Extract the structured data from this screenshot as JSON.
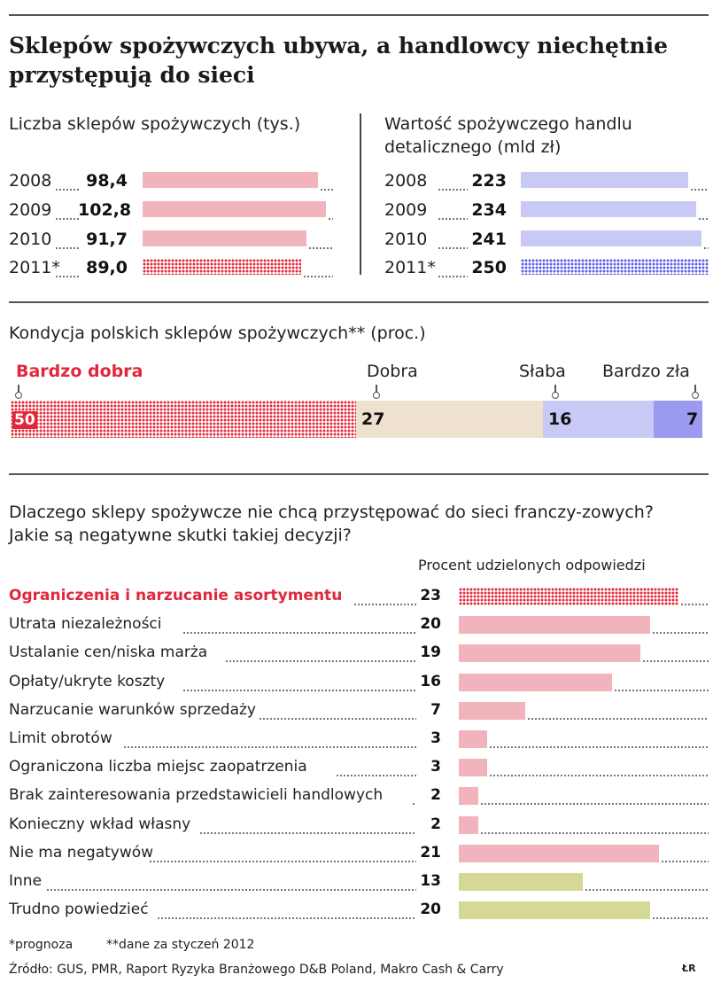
{
  "title": "Sklepów spożywczych ubywa, a handlowcy niechętnie przystępują do sieci",
  "colors": {
    "pink": "#f2b4bc",
    "red": "#e0283a",
    "blue_light": "#c9c9f6",
    "blue_dark": "#5c5ce8",
    "beige": "#eee1ce",
    "violet": "#9a9af0",
    "olive": "#d6d896"
  },
  "chart_data": [
    {
      "type": "bar",
      "title": "Liczba sklepów spożywczych (tys.)",
      "categories": [
        "2008",
        "2009",
        "2010",
        "2011*"
      ],
      "values": [
        98.4,
        102.8,
        91.7,
        89.0
      ],
      "labels": [
        "98,4",
        "102,8",
        "91,7",
        "89,0"
      ],
      "forecast_last": true
    },
    {
      "type": "bar",
      "title": "Wartość spożywczego handlu detalicznego (mld zł)",
      "categories": [
        "2008",
        "2009",
        "2010",
        "2011*"
      ],
      "values": [
        223,
        234,
        241,
        250
      ],
      "labels": [
        "223",
        "234",
        "241",
        "250"
      ],
      "forecast_last": true
    },
    {
      "type": "bar",
      "stacked": true,
      "title": "Kondycja polskich sklepów spożywczych** (proc.)",
      "categories": [
        "Bardzo dobra",
        "Dobra",
        "Słaba",
        "Bardzo zła"
      ],
      "values": [
        50,
        27,
        16,
        7
      ],
      "labels": [
        "50",
        "27",
        "16",
        "7"
      ]
    },
    {
      "type": "bar",
      "title": "Dlaczego sklepy spożywcze nie chcą przystępować do sieci franczy-zowych? Jakie są negatywne skutki takiej decyzji?",
      "value_label": "Procent udzielonych odpowiedzi",
      "categories": [
        "Ograniczenia i narzucanie asortymentu",
        "Utrata niezależności",
        "Ustalanie cen/niska marża",
        "Opłaty/ukryte koszty",
        "Narzucanie warunków sprzedaży",
        "Limit obrotów",
        "Ograniczona liczba miejsc zaopatrzenia",
        "Brak zainteresowania przedstawicieli handlowych",
        "Konieczny wkład własny",
        "Nie ma negatywów",
        "Inne",
        "Trudno powiedzieć"
      ],
      "values": [
        23,
        20,
        19,
        16,
        7,
        3,
        3,
        2,
        2,
        21,
        13,
        20
      ],
      "labels": [
        "23",
        "20",
        "19",
        "16",
        "7",
        "3",
        "3",
        "2",
        "2",
        "21",
        "13",
        "20"
      ]
    }
  ],
  "footnotes": {
    "prognoza": "*prognoza",
    "dane": "**dane za styczeń 2012",
    "source": "Źródło: GUS, PMR, Raport Ryzyka Branżowego D&B Poland, Makro Cash & Carry",
    "credit": "ŁR"
  }
}
